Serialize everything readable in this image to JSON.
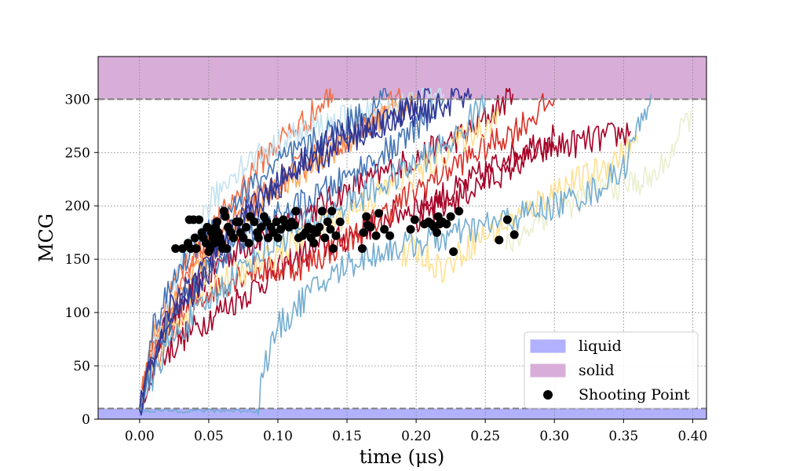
{
  "chart_data": {
    "type": "line",
    "title": "",
    "xlabel": "time (μs)",
    "ylabel": "MCG",
    "xlim": [
      -0.03,
      0.41
    ],
    "ylim": [
      0,
      340
    ],
    "x_ticks": [
      0.0,
      0.05,
      0.1,
      0.15,
      0.2,
      0.25,
      0.3,
      0.35,
      0.4
    ],
    "x_tick_labels": [
      "0.00",
      "0.05",
      "0.10",
      "0.15",
      "0.20",
      "0.25",
      "0.30",
      "0.35",
      "0.40"
    ],
    "y_ticks": [
      0,
      50,
      100,
      150,
      200,
      250,
      300
    ],
    "y_tick_labels": [
      "0",
      "50",
      "100",
      "150",
      "200",
      "250",
      "300"
    ],
    "grid": true,
    "legend_position": "bottom-right",
    "regions": [
      {
        "label": "liquid",
        "y0": 0,
        "y1": 10,
        "color": "#b1b1ff"
      },
      {
        "label": "solid",
        "y0": 300,
        "y1": 340,
        "color": "#d8aed9"
      }
    ],
    "thresholds": [
      10,
      300
    ],
    "legend": [
      {
        "label": "liquid",
        "kind": "patch",
        "color": "#b1b1ff"
      },
      {
        "label": "solid",
        "kind": "patch",
        "color": "#d8aed9"
      },
      {
        "label": "Shooting Point",
        "kind": "marker",
        "color": "#000000"
      }
    ],
    "series": [
      {
        "color": "#a50026",
        "x": [
          0.0,
          0.01,
          0.02,
          0.04,
          0.06,
          0.08,
          0.1,
          0.13,
          0.16,
          0.2,
          0.24,
          0.27
        ],
        "y": [
          10,
          60,
          90,
          120,
          150,
          165,
          180,
          200,
          220,
          245,
          270,
          305
        ]
      },
      {
        "color": "#a50026",
        "x": [
          0.0,
          0.01,
          0.03,
          0.05,
          0.08,
          0.11,
          0.15,
          0.18,
          0.21,
          0.23,
          0.26,
          0.28,
          0.3
        ],
        "y": [
          10,
          50,
          75,
          95,
          120,
          150,
          170,
          190,
          205,
          215,
          240,
          255,
          265
        ]
      },
      {
        "color": "#a50026",
        "x": [
          0.2,
          0.22,
          0.24,
          0.26,
          0.28,
          0.3,
          0.32,
          0.34,
          0.355
        ],
        "y": [
          185,
          200,
          215,
          230,
          245,
          255,
          260,
          265,
          270
        ]
      },
      {
        "color": "#d73027",
        "x": [
          0.0,
          0.01,
          0.03,
          0.05,
          0.08,
          0.1,
          0.12,
          0.14,
          0.17,
          0.2,
          0.23,
          0.25,
          0.27,
          0.3
        ],
        "y": [
          10,
          60,
          95,
          120,
          140,
          140,
          145,
          160,
          185,
          215,
          240,
          255,
          270,
          300
        ]
      },
      {
        "color": "#f46d43",
        "x": [
          0.0,
          0.01,
          0.03,
          0.06,
          0.08,
          0.1,
          0.12,
          0.14
        ],
        "y": [
          10,
          80,
          140,
          190,
          230,
          260,
          280,
          305
        ]
      },
      {
        "color": "#f46d43",
        "x": [
          0.0,
          0.01,
          0.03,
          0.05,
          0.07,
          0.09,
          0.11,
          0.13,
          0.15,
          0.17,
          0.19
        ],
        "y": [
          10,
          70,
          120,
          170,
          190,
          210,
          230,
          250,
          265,
          280,
          305
        ]
      },
      {
        "color": "#fdae61",
        "x": [
          0.0,
          0.01,
          0.04,
          0.07,
          0.1,
          0.13,
          0.16,
          0.2
        ],
        "y": [
          10,
          75,
          135,
          180,
          215,
          245,
          270,
          305
        ]
      },
      {
        "color": "#fee090",
        "x": [
          0.19,
          0.2,
          0.22,
          0.24,
          0.26,
          0.28,
          0.3,
          0.32,
          0.34,
          0.36
        ],
        "y": [
          150,
          160,
          140,
          165,
          180,
          195,
          215,
          225,
          240,
          260
        ]
      },
      {
        "color": "#fee090",
        "x": [
          0.0,
          0.02,
          0.05,
          0.08,
          0.11,
          0.14,
          0.17,
          0.2,
          0.23,
          0.26
        ],
        "y": [
          10,
          80,
          125,
          140,
          165,
          185,
          210,
          230,
          260,
          285
        ]
      },
      {
        "color": "#e9efd0",
        "x": [
          0.265,
          0.29,
          0.31,
          0.33,
          0.35,
          0.37,
          0.38,
          0.39,
          0.4
        ],
        "y": [
          160,
          190,
          200,
          215,
          220,
          225,
          240,
          265,
          290
        ]
      },
      {
        "color": "#c6e3ef",
        "x": [
          0.0,
          0.01,
          0.03,
          0.05,
          0.07,
          0.09,
          0.11,
          0.13,
          0.16,
          0.19,
          0.22
        ],
        "y": [
          10,
          60,
          140,
          200,
          235,
          250,
          265,
          275,
          285,
          295,
          305
        ]
      },
      {
        "color": "#74add1",
        "x": [
          0.0,
          0.03,
          0.06,
          0.085,
          0.09,
          0.1,
          0.12,
          0.15,
          0.18,
          0.22,
          0.26,
          0.3,
          0.33,
          0.35,
          0.37
        ],
        "y": [
          8,
          8,
          8,
          8,
          50,
          85,
          115,
          145,
          160,
          170,
          185,
          200,
          215,
          235,
          305
        ]
      },
      {
        "color": "#74add1",
        "x": [
          0.0,
          0.02,
          0.05,
          0.08,
          0.11,
          0.14,
          0.17,
          0.2,
          0.23,
          0.25
        ],
        "y": [
          10,
          70,
          110,
          150,
          175,
          195,
          215,
          240,
          265,
          300
        ]
      },
      {
        "color": "#4575b4",
        "x": [
          0.0,
          0.01,
          0.03,
          0.05,
          0.07,
          0.1,
          0.12,
          0.14,
          0.16,
          0.18
        ],
        "y": [
          10,
          85,
          145,
          180,
          205,
          240,
          255,
          270,
          285,
          305
        ]
      },
      {
        "color": "#4575b4",
        "x": [
          0.0,
          0.02,
          0.04,
          0.07,
          0.1,
          0.13,
          0.16,
          0.19,
          0.22
        ],
        "y": [
          10,
          90,
          130,
          165,
          190,
          210,
          235,
          260,
          300
        ]
      },
      {
        "color": "#313695",
        "x": [
          0.0,
          0.01,
          0.03,
          0.05,
          0.07,
          0.09,
          0.11,
          0.13,
          0.15,
          0.17,
          0.19,
          0.21,
          0.24
        ],
        "y": [
          10,
          60,
          100,
          140,
          185,
          210,
          235,
          255,
          270,
          275,
          285,
          290,
          305
        ]
      },
      {
        "color": "#313695",
        "x": [
          0.0,
          0.02,
          0.05,
          0.08,
          0.1,
          0.12,
          0.15,
          0.18,
          0.21
        ],
        "y": [
          10,
          100,
          150,
          195,
          220,
          235,
          260,
          280,
          305
        ]
      }
    ],
    "shooting_points": [
      [
        0.026,
        160
      ],
      [
        0.031,
        160
      ],
      [
        0.035,
        165
      ],
      [
        0.036,
        187
      ],
      [
        0.037,
        160
      ],
      [
        0.039,
        187
      ],
      [
        0.04,
        170
      ],
      [
        0.041,
        160
      ],
      [
        0.043,
        187
      ],
      [
        0.045,
        175
      ],
      [
        0.046,
        170
      ],
      [
        0.048,
        165
      ],
      [
        0.049,
        180
      ],
      [
        0.05,
        157
      ],
      [
        0.051,
        160
      ],
      [
        0.052,
        175
      ],
      [
        0.053,
        170
      ],
      [
        0.054,
        165
      ],
      [
        0.055,
        180
      ],
      [
        0.056,
        185
      ],
      [
        0.057,
        175
      ],
      [
        0.058,
        170
      ],
      [
        0.059,
        165
      ],
      [
        0.06,
        160
      ],
      [
        0.061,
        195
      ],
      [
        0.062,
        190
      ],
      [
        0.063,
        160
      ],
      [
        0.064,
        180
      ],
      [
        0.066,
        175
      ],
      [
        0.068,
        170
      ],
      [
        0.07,
        185
      ],
      [
        0.072,
        185
      ],
      [
        0.073,
        175
      ],
      [
        0.075,
        170
      ],
      [
        0.077,
        180
      ],
      [
        0.079,
        165
      ],
      [
        0.08,
        190
      ],
      [
        0.083,
        185
      ],
      [
        0.085,
        175
      ],
      [
        0.086,
        170
      ],
      [
        0.088,
        180
      ],
      [
        0.09,
        190
      ],
      [
        0.092,
        185
      ],
      [
        0.093,
        170
      ],
      [
        0.095,
        180
      ],
      [
        0.097,
        175
      ],
      [
        0.099,
        185
      ],
      [
        0.1,
        170
      ],
      [
        0.102,
        178
      ],
      [
        0.104,
        187
      ],
      [
        0.106,
        182
      ],
      [
        0.108,
        180
      ],
      [
        0.11,
        185
      ],
      [
        0.112,
        182
      ],
      [
        0.113,
        195
      ],
      [
        0.115,
        170
      ],
      [
        0.118,
        172
      ],
      [
        0.12,
        175
      ],
      [
        0.122,
        180
      ],
      [
        0.124,
        170
      ],
      [
        0.125,
        178
      ],
      [
        0.126,
        165
      ],
      [
        0.128,
        175
      ],
      [
        0.13,
        180
      ],
      [
        0.132,
        195
      ],
      [
        0.134,
        170
      ],
      [
        0.136,
        185
      ],
      [
        0.138,
        178
      ],
      [
        0.139,
        195
      ],
      [
        0.14,
        160
      ],
      [
        0.142,
        172
      ],
      [
        0.145,
        185
      ],
      [
        0.161,
        160
      ],
      [
        0.162,
        175
      ],
      [
        0.164,
        190
      ],
      [
        0.165,
        182
      ],
      [
        0.167,
        180
      ],
      [
        0.171,
        172
      ],
      [
        0.173,
        193
      ],
      [
        0.177,
        178
      ],
      [
        0.181,
        172
      ],
      [
        0.196,
        178
      ],
      [
        0.199,
        187
      ],
      [
        0.206,
        183
      ],
      [
        0.209,
        185
      ],
      [
        0.211,
        183
      ],
      [
        0.213,
        180
      ],
      [
        0.215,
        175
      ],
      [
        0.216,
        190
      ],
      [
        0.217,
        183
      ],
      [
        0.219,
        185
      ],
      [
        0.222,
        183
      ],
      [
        0.225,
        190
      ],
      [
        0.227,
        157
      ],
      [
        0.231,
        195
      ],
      [
        0.26,
        168
      ],
      [
        0.266,
        187
      ],
      [
        0.271,
        173
      ]
    ]
  }
}
